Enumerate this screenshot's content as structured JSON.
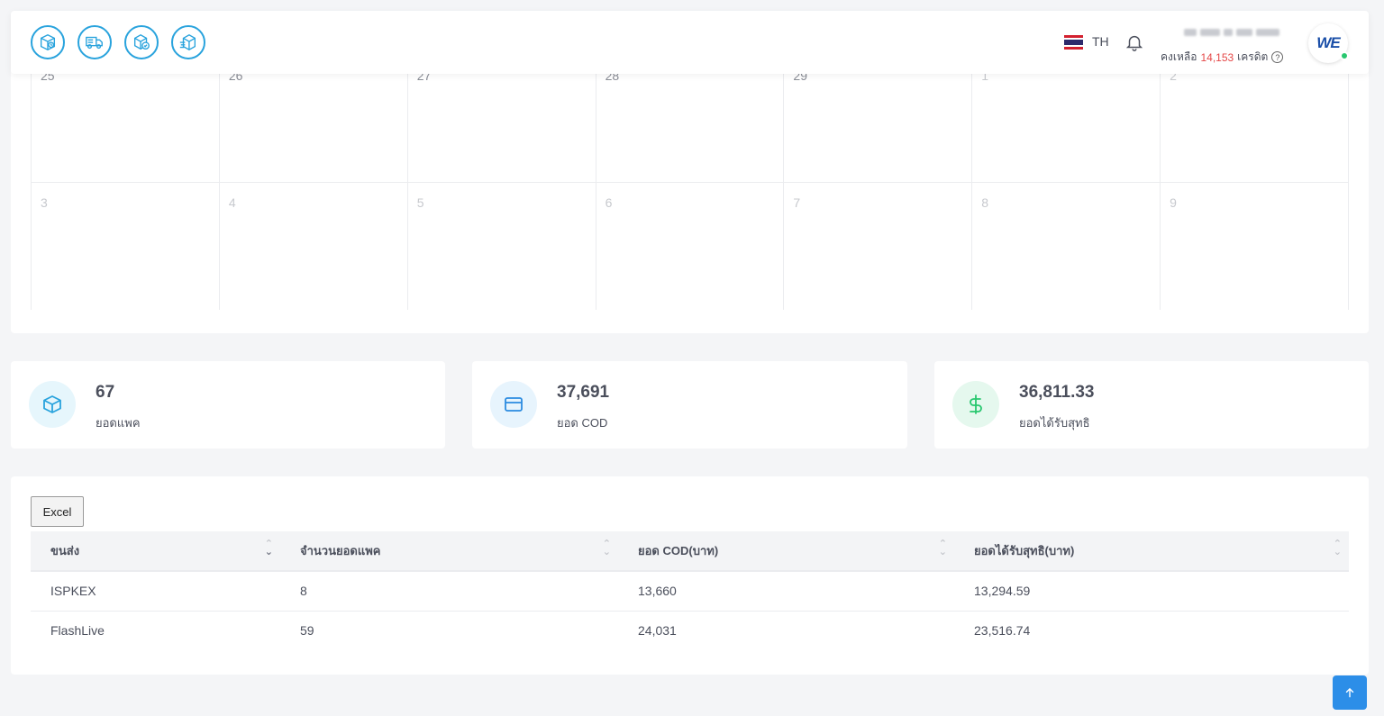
{
  "header": {
    "nav_icons": [
      "package-clock-icon",
      "delivery-truck-icon",
      "package-check-icon",
      "package-move-icon"
    ],
    "language": "TH",
    "credit_prefix": "คงเหลือ",
    "credit_value": "14,153",
    "credit_suffix": "เครดิต",
    "avatar_text": "WE"
  },
  "calendar": {
    "rows": [
      [
        {
          "day": "25",
          "current": true
        },
        {
          "day": "26",
          "current": true
        },
        {
          "day": "27",
          "current": true
        },
        {
          "day": "28",
          "current": true
        },
        {
          "day": "29",
          "current": true
        },
        {
          "day": "1",
          "current": false
        },
        {
          "day": "2",
          "current": false
        }
      ],
      [
        {
          "day": "3",
          "current": false
        },
        {
          "day": "4",
          "current": false
        },
        {
          "day": "5",
          "current": false
        },
        {
          "day": "6",
          "current": false
        },
        {
          "day": "7",
          "current": false
        },
        {
          "day": "8",
          "current": false
        },
        {
          "day": "9",
          "current": false
        }
      ]
    ]
  },
  "stats": [
    {
      "value": "67",
      "label": "ยอดแพค",
      "icon": "box-icon",
      "color": "#29a3dd",
      "bg": "#e6f6fc"
    },
    {
      "value": "37,691",
      "label": "ยอด COD",
      "icon": "credit-card-icon",
      "color": "#2b8be0",
      "bg": "#e7f4fd"
    },
    {
      "value": "36,811.33",
      "label": "ยอดได้รับสุทธิ",
      "icon": "dollar-icon",
      "color": "#28c76f",
      "bg": "#e5f8ee"
    }
  ],
  "table": {
    "excel_label": "Excel",
    "columns": [
      "ขนส่ง",
      "จำนวนยอดแพค",
      "ยอด COD(บาท)",
      "ยอดได้รับสุทธิ(บาท)"
    ],
    "rows": [
      [
        "ISPKEX",
        "8",
        "13,660",
        "13,294.59"
      ],
      [
        "FlashLive",
        "59",
        "24,031",
        "23,516.74"
      ]
    ]
  },
  "scroll_top_icon": "arrow-up-icon"
}
